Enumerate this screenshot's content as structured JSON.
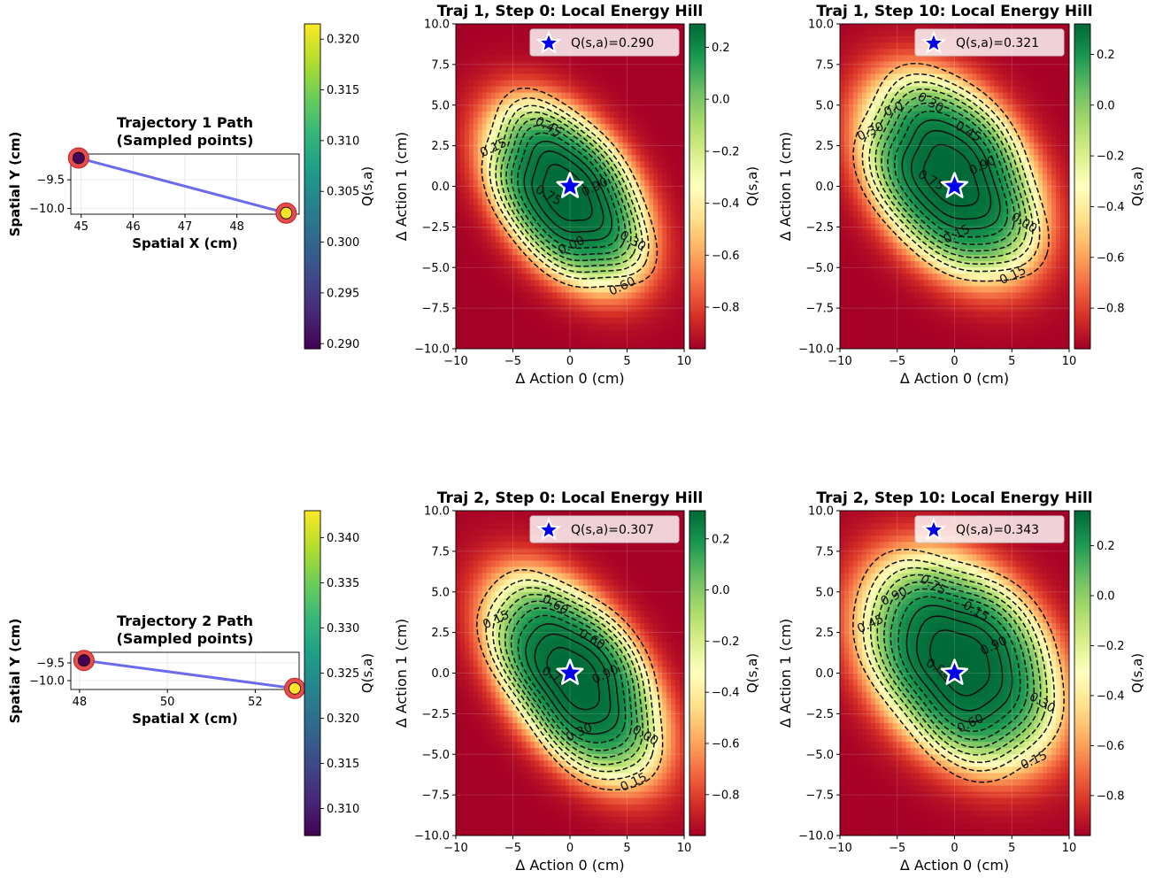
{
  "chart_data": [
    {
      "type": "scatter",
      "title_line1": "Trajectory 1 Path",
      "title_line2": "(Sampled points)",
      "xlabel": "Spatial X (cm)",
      "ylabel": "Spatial Y (cm)",
      "xlim": [
        44.8,
        49.2
      ],
      "ylim": [
        -10.1,
        -9.05
      ],
      "xticks": [
        45,
        46,
        47,
        48
      ],
      "yticks": [
        -9.5,
        -10.0
      ],
      "points": [
        {
          "x": 44.95,
          "y": -9.12,
          "q": 0.29
        },
        {
          "x": 48.95,
          "y": -10.08,
          "q": 0.321
        }
      ],
      "path_color": "#6a6aee",
      "marker_ring_color": "#e84b4b",
      "colorbar": {
        "label": "Q(s,a)",
        "colormap": "viridis",
        "range": [
          0.2895,
          0.3215
        ],
        "ticks": [
          "0.290",
          "0.295",
          "0.300",
          "0.305",
          "0.310",
          "0.315",
          "0.320"
        ]
      }
    },
    {
      "type": "heatmap",
      "title": "Traj 1, Step 0: Local Energy Hill",
      "xlabel": "Δ Action 0 (cm)",
      "ylabel": "Δ Action 1 (cm)",
      "xlim": [
        -10,
        10
      ],
      "ylim": [
        -10,
        10
      ],
      "xticks": [
        -10,
        -5,
        0,
        5,
        10
      ],
      "yticks": [
        10.0,
        7.5,
        5.0,
        2.5,
        0.0,
        -2.5,
        -5.0,
        -7.5,
        -10.0
      ],
      "legend": "Q(s,a)=0.290",
      "legend_placement": "top-right",
      "star": {
        "x": 0,
        "y": 0
      },
      "field": {
        "cx": -0.3,
        "cy": -0.5,
        "a": 6.5,
        "b": 3.9,
        "angle_deg": -32,
        "peak": 0.29
      },
      "contour_labels": [
        "0.90",
        "0.45",
        "0.15",
        "0.75",
        "0.00",
        "0.30",
        "0.60"
      ],
      "colorbar": {
        "label": "Q(s,a)",
        "colormap": "RdYlGn",
        "range": [
          -0.96,
          0.29
        ],
        "ticks": [
          "0.2",
          "0.0",
          "−0.2",
          "−0.4",
          "−0.6",
          "−0.8"
        ]
      }
    },
    {
      "type": "heatmap",
      "title": "Traj 1, Step 10: Local Energy Hill",
      "xlabel": "Δ Action 0 (cm)",
      "ylabel": "Δ Action 1 (cm)",
      "xlim": [
        -10,
        10
      ],
      "ylim": [
        -10,
        10
      ],
      "xticks": [
        -10,
        -5,
        0,
        5,
        10
      ],
      "yticks": [
        10.0,
        7.5,
        5.0,
        2.5,
        0.0,
        -2.5,
        -5.0,
        -7.5,
        -10.0
      ],
      "legend": "Q(s,a)=0.321",
      "legend_placement": "top-right",
      "star": {
        "x": 0,
        "y": 0
      },
      "field": {
        "cx": -0.3,
        "cy": 0.6,
        "a": 7.0,
        "b": 4.5,
        "angle_deg": -30,
        "peak": 0.321
      },
      "contour_labels": [
        "0.90",
        "0.30",
        "0.30",
        "0.75",
        "0.15",
        "0.00",
        "0.15",
        "0.45",
        "0.0"
      ],
      "colorbar": {
        "label": "Q(s,a)",
        "colormap": "RdYlGn",
        "range": [
          -0.96,
          0.32
        ],
        "ticks": [
          "0.2",
          "0.0",
          "−0.2",
          "−0.4",
          "−0.6",
          "−0.8"
        ]
      }
    },
    {
      "type": "scatter",
      "title_line1": "Trajectory 2 Path",
      "title_line2": "(Sampled points)",
      "xlabel": "Spatial X (cm)",
      "ylabel": "Spatial Y (cm)",
      "xlim": [
        47.8,
        53.0
      ],
      "ylim": [
        -10.25,
        -9.2
      ],
      "xticks": [
        48,
        50,
        52
      ],
      "yticks": [
        -9.5,
        -10.0
      ],
      "points": [
        {
          "x": 48.1,
          "y": -9.43,
          "q": 0.307
        },
        {
          "x": 52.9,
          "y": -10.22,
          "q": 0.343
        }
      ],
      "path_color": "#6a6aee",
      "marker_ring_color": "#e84b4b",
      "colorbar": {
        "label": "Q(s,a)",
        "colormap": "viridis",
        "range": [
          0.307,
          0.343
        ],
        "ticks": [
          "0.310",
          "0.315",
          "0.320",
          "0.325",
          "0.330",
          "0.335",
          "0.340"
        ]
      }
    },
    {
      "type": "heatmap",
      "title": "Traj 2, Step 0: Local Energy Hill",
      "xlabel": "Δ Action 0 (cm)",
      "ylabel": "Δ Action 1 (cm)",
      "xlim": [
        -10,
        10
      ],
      "ylim": [
        -10,
        10
      ],
      "xticks": [
        -10,
        -5,
        0,
        5,
        10
      ],
      "yticks": [
        10.0,
        7.5,
        5.0,
        2.5,
        0.0,
        -2.5,
        -5.0,
        -7.5,
        -10.0
      ],
      "legend": "Q(s,a)=0.307",
      "legend_placement": "top-right",
      "star": {
        "x": 0,
        "y": 0
      },
      "field": {
        "cx": 0.4,
        "cy": -0.3,
        "a": 7.2,
        "b": 4.0,
        "angle_deg": -35,
        "peak": 0.307
      },
      "contour_labels": [
        "0.90",
        "0.60",
        "0.15",
        "0.75",
        "0.30",
        "0.00",
        "0.15",
        "0.60"
      ],
      "colorbar": {
        "label": "Q(s,a)",
        "colormap": "RdYlGn",
        "range": [
          -0.96,
          0.31
        ],
        "ticks": [
          "0.2",
          "0.0",
          "−0.2",
          "−0.4",
          "−0.6",
          "−0.8"
        ]
      }
    },
    {
      "type": "heatmap",
      "title": "Traj 2, Step 10: Local Energy Hill",
      "xlabel": "Δ Action 0 (cm)",
      "ylabel": "Δ Action 1 (cm)",
      "xlim": [
        -10,
        10
      ],
      "ylim": [
        -10,
        10
      ],
      "xticks": [
        -10,
        -5,
        0,
        5,
        10
      ],
      "yticks": [
        10.0,
        7.5,
        5.0,
        2.5,
        0.0,
        -2.5,
        -5.0,
        -7.5,
        -10.0
      ],
      "legend": "Q(s,a)=0.343",
      "legend_placement": "top-right",
      "star": {
        "x": 0,
        "y": 0
      },
      "field": {
        "cx": 0.5,
        "cy": 0.7,
        "a": 7.6,
        "b": 4.9,
        "angle_deg": -25,
        "peak": 0.343
      },
      "contour_labels": [
        "0.90",
        "0.75",
        "0.45",
        "0.00",
        "0.60",
        "0.30",
        "0.15",
        "0.15",
        "0.90"
      ],
      "colorbar": {
        "label": "Q(s,a)",
        "colormap": "RdYlGn",
        "range": [
          -0.96,
          0.34
        ],
        "ticks": [
          "0.2",
          "0.0",
          "−0.2",
          "−0.4",
          "−0.6",
          "−0.8"
        ]
      }
    }
  ]
}
